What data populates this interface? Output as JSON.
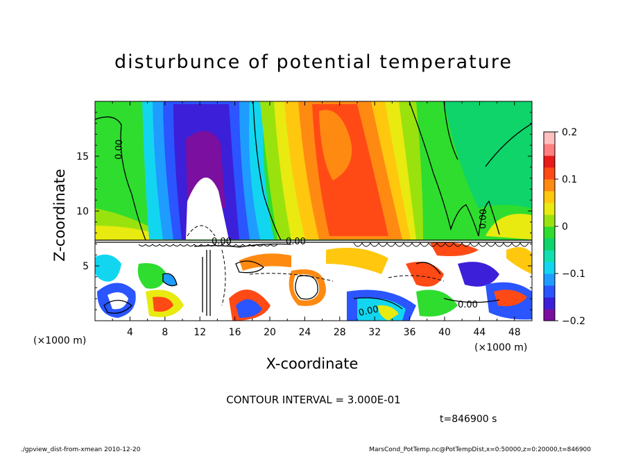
{
  "chart_data": {
    "type": "heatmap",
    "title": "disturbunce of potential temperature",
    "xlabel": "X-coordinate",
    "ylabel": "Z-coordinate",
    "x_unit_label": "(×1000 m)",
    "x_ticks": [
      "4",
      "8",
      "12",
      "16",
      "20",
      "24",
      "28",
      "32",
      "36",
      "40",
      "44",
      "48"
    ],
    "xlim": [
      0,
      50
    ],
    "y_ticks": [
      "5",
      "10",
      "15"
    ],
    "ylim": [
      0,
      20
    ],
    "colorbar": {
      "range": [
        -0.2,
        0.2
      ],
      "tick_labels": [
        "0.2",
        "0.1",
        "0",
        "−0.1",
        "−0.2"
      ],
      "colors": [
        "#7a0fa0",
        "#3c1fd8",
        "#2a55ff",
        "#1f9cff",
        "#12d6f0",
        "#10e0b0",
        "#0ed46a",
        "#2fdd2f",
        "#9ae20e",
        "#e8ea10",
        "#ffc80e",
        "#ff8a12",
        "#ff4a16",
        "#e81a1a",
        "#ff7f7f",
        "#ffc0c0"
      ]
    },
    "contour_labels": [
      "0.00"
    ],
    "contour_interval": "CONTOUR INTERVAL = 3.000E-01",
    "time": "t=846900 s"
  },
  "footer": {
    "left": "./gpview_dist-from-xmean  2010-12-20",
    "right": "MarsCond_PotTemp.nc@PotTempDist,x=0:50000,z=0:20000,t=846900"
  }
}
